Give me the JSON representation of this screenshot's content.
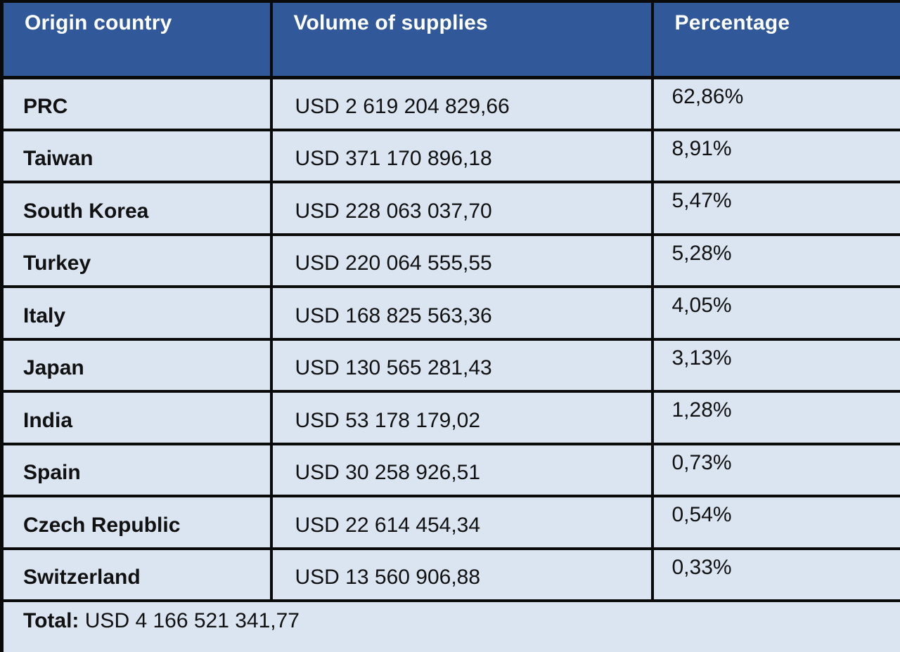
{
  "colors": {
    "header_bg": "#31599A",
    "row_bg": "#DBE5F1",
    "border": "#0A0A0A",
    "header_text": "#FFFFFF",
    "body_text": "#111111"
  },
  "table": {
    "columns": [
      {
        "label": "Origin country"
      },
      {
        "label": "Volume of supplies"
      },
      {
        "label": "Percentage"
      }
    ],
    "rows": [
      {
        "country": "PRC",
        "volume": "USD 2 619 204 829,66",
        "percentage": "62,86%"
      },
      {
        "country": "Taiwan",
        "volume": "USD 371 170 896,18",
        "percentage": "8,91%"
      },
      {
        "country": "South Korea",
        "volume": "USD 228 063 037,70",
        "percentage": "5,47%"
      },
      {
        "country": "Turkey",
        "volume": "USD 220 064 555,55",
        "percentage": "5,28%"
      },
      {
        "country": "Italy",
        "volume": "USD 168 825 563,36",
        "percentage": "4,05%"
      },
      {
        "country": "Japan",
        "volume": "USD 130 565 281,43",
        "percentage": "3,13%"
      },
      {
        "country": "India",
        "volume": "USD 53 178 179,02",
        "percentage": "1,28%"
      },
      {
        "country": "Spain",
        "volume": "USD 30 258 926,51",
        "percentage": "0,73%"
      },
      {
        "country": "Czech Republic",
        "volume": "USD 22 614 454,34",
        "percentage": "0,54%"
      },
      {
        "country": "Switzerland",
        "volume": "USD 13 560 906,88",
        "percentage": "0,33%"
      }
    ],
    "total": {
      "label": "Total:",
      "value": "USD 4 166 521 341,77"
    }
  },
  "chart_data": {
    "type": "table",
    "title": "",
    "columns": [
      "Origin country",
      "Volume of supplies",
      "Percentage"
    ],
    "categories": [
      "PRC",
      "Taiwan",
      "South Korea",
      "Turkey",
      "Italy",
      "Japan",
      "India",
      "Spain",
      "Czech Republic",
      "Switzerland"
    ],
    "series": [
      {
        "name": "Volume of supplies (USD)",
        "values": [
          2619204829.66,
          371170896.18,
          228063037.7,
          220064555.55,
          168825563.36,
          130565281.43,
          53178179.02,
          30258926.51,
          22614454.34,
          13560906.88
        ]
      },
      {
        "name": "Percentage",
        "values": [
          62.86,
          8.91,
          5.47,
          5.28,
          4.05,
          3.13,
          1.28,
          0.73,
          0.54,
          0.33
        ]
      }
    ],
    "total": 4166521341.77,
    "total_label": "Total: USD 4 166 521 341,77"
  }
}
